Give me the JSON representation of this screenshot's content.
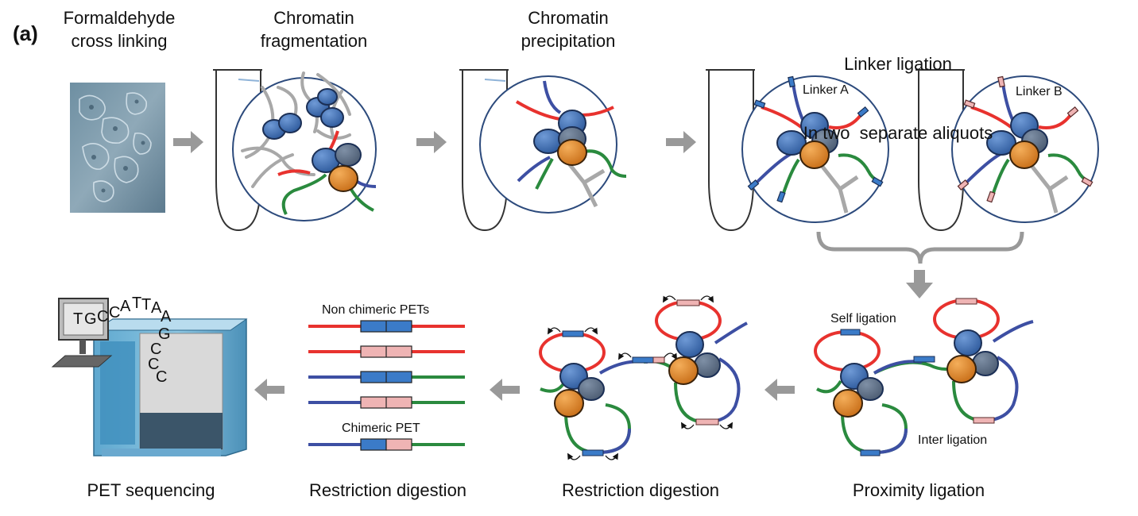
{
  "panel_label": "(a)",
  "steps": {
    "crosslink": [
      "Formaldehyde",
      "cross linking"
    ],
    "fragmentation": [
      "Chromatin",
      "fragmentation"
    ],
    "precipitation": [
      "Chromatin",
      "precipitation"
    ],
    "ligation": [
      "Linker ligation",
      "In two  separate aliquots"
    ],
    "proximity": "Proximity ligation",
    "digestion_loops": "Restriction digestion",
    "digestion_pets": "Restriction digestion",
    "sequencing": "PET sequencing"
  },
  "inset_labels": {
    "linker_a": "Linker A",
    "linker_b": "Linker B",
    "self_ligation": "Self ligation",
    "inter_ligation": "Inter ligation",
    "non_chimeric": "Non chimeric PETs",
    "chimeric": "Chimeric PET"
  },
  "sequence_letters": [
    "T",
    "G",
    "C",
    "C",
    "A",
    "T",
    "T",
    "A",
    "A",
    "G",
    "C",
    "C",
    "C"
  ],
  "colors": {
    "protein_blue": "#3a6fb5",
    "protein_orange": "#e08a2c",
    "dna_red": "#e8322e",
    "dna_blue": "#3d4fa3",
    "dna_green": "#2a8a3e",
    "dna_gray": "#a8a8a8",
    "linker_a": "#3b7bc8",
    "linker_b": "#efb4b4",
    "arrow_gray": "#999999"
  }
}
